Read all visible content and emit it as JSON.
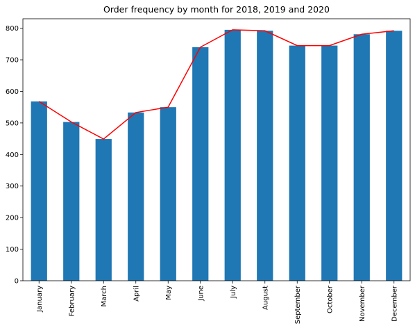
{
  "chart_data": {
    "type": "bar",
    "title": "Order frequency by month for 2018, 2019 and 2020",
    "xlabel": "",
    "ylabel": "",
    "categories": [
      "January",
      "February",
      "March",
      "April",
      "May",
      "June",
      "July",
      "August",
      "September",
      "October",
      "November",
      "December"
    ],
    "values": [
      568,
      503,
      449,
      533,
      550,
      740,
      795,
      792,
      745,
      745,
      781,
      792
    ],
    "line_values": [
      568,
      503,
      449,
      533,
      550,
      740,
      795,
      792,
      745,
      745,
      781,
      792
    ],
    "ylim": [
      0,
      830
    ],
    "yticks": [
      0,
      100,
      200,
      300,
      400,
      500,
      600,
      700,
      800
    ],
    "bar_color": "#1f77b4",
    "line_color": "#ff0000",
    "grid": false,
    "legend": "none"
  }
}
